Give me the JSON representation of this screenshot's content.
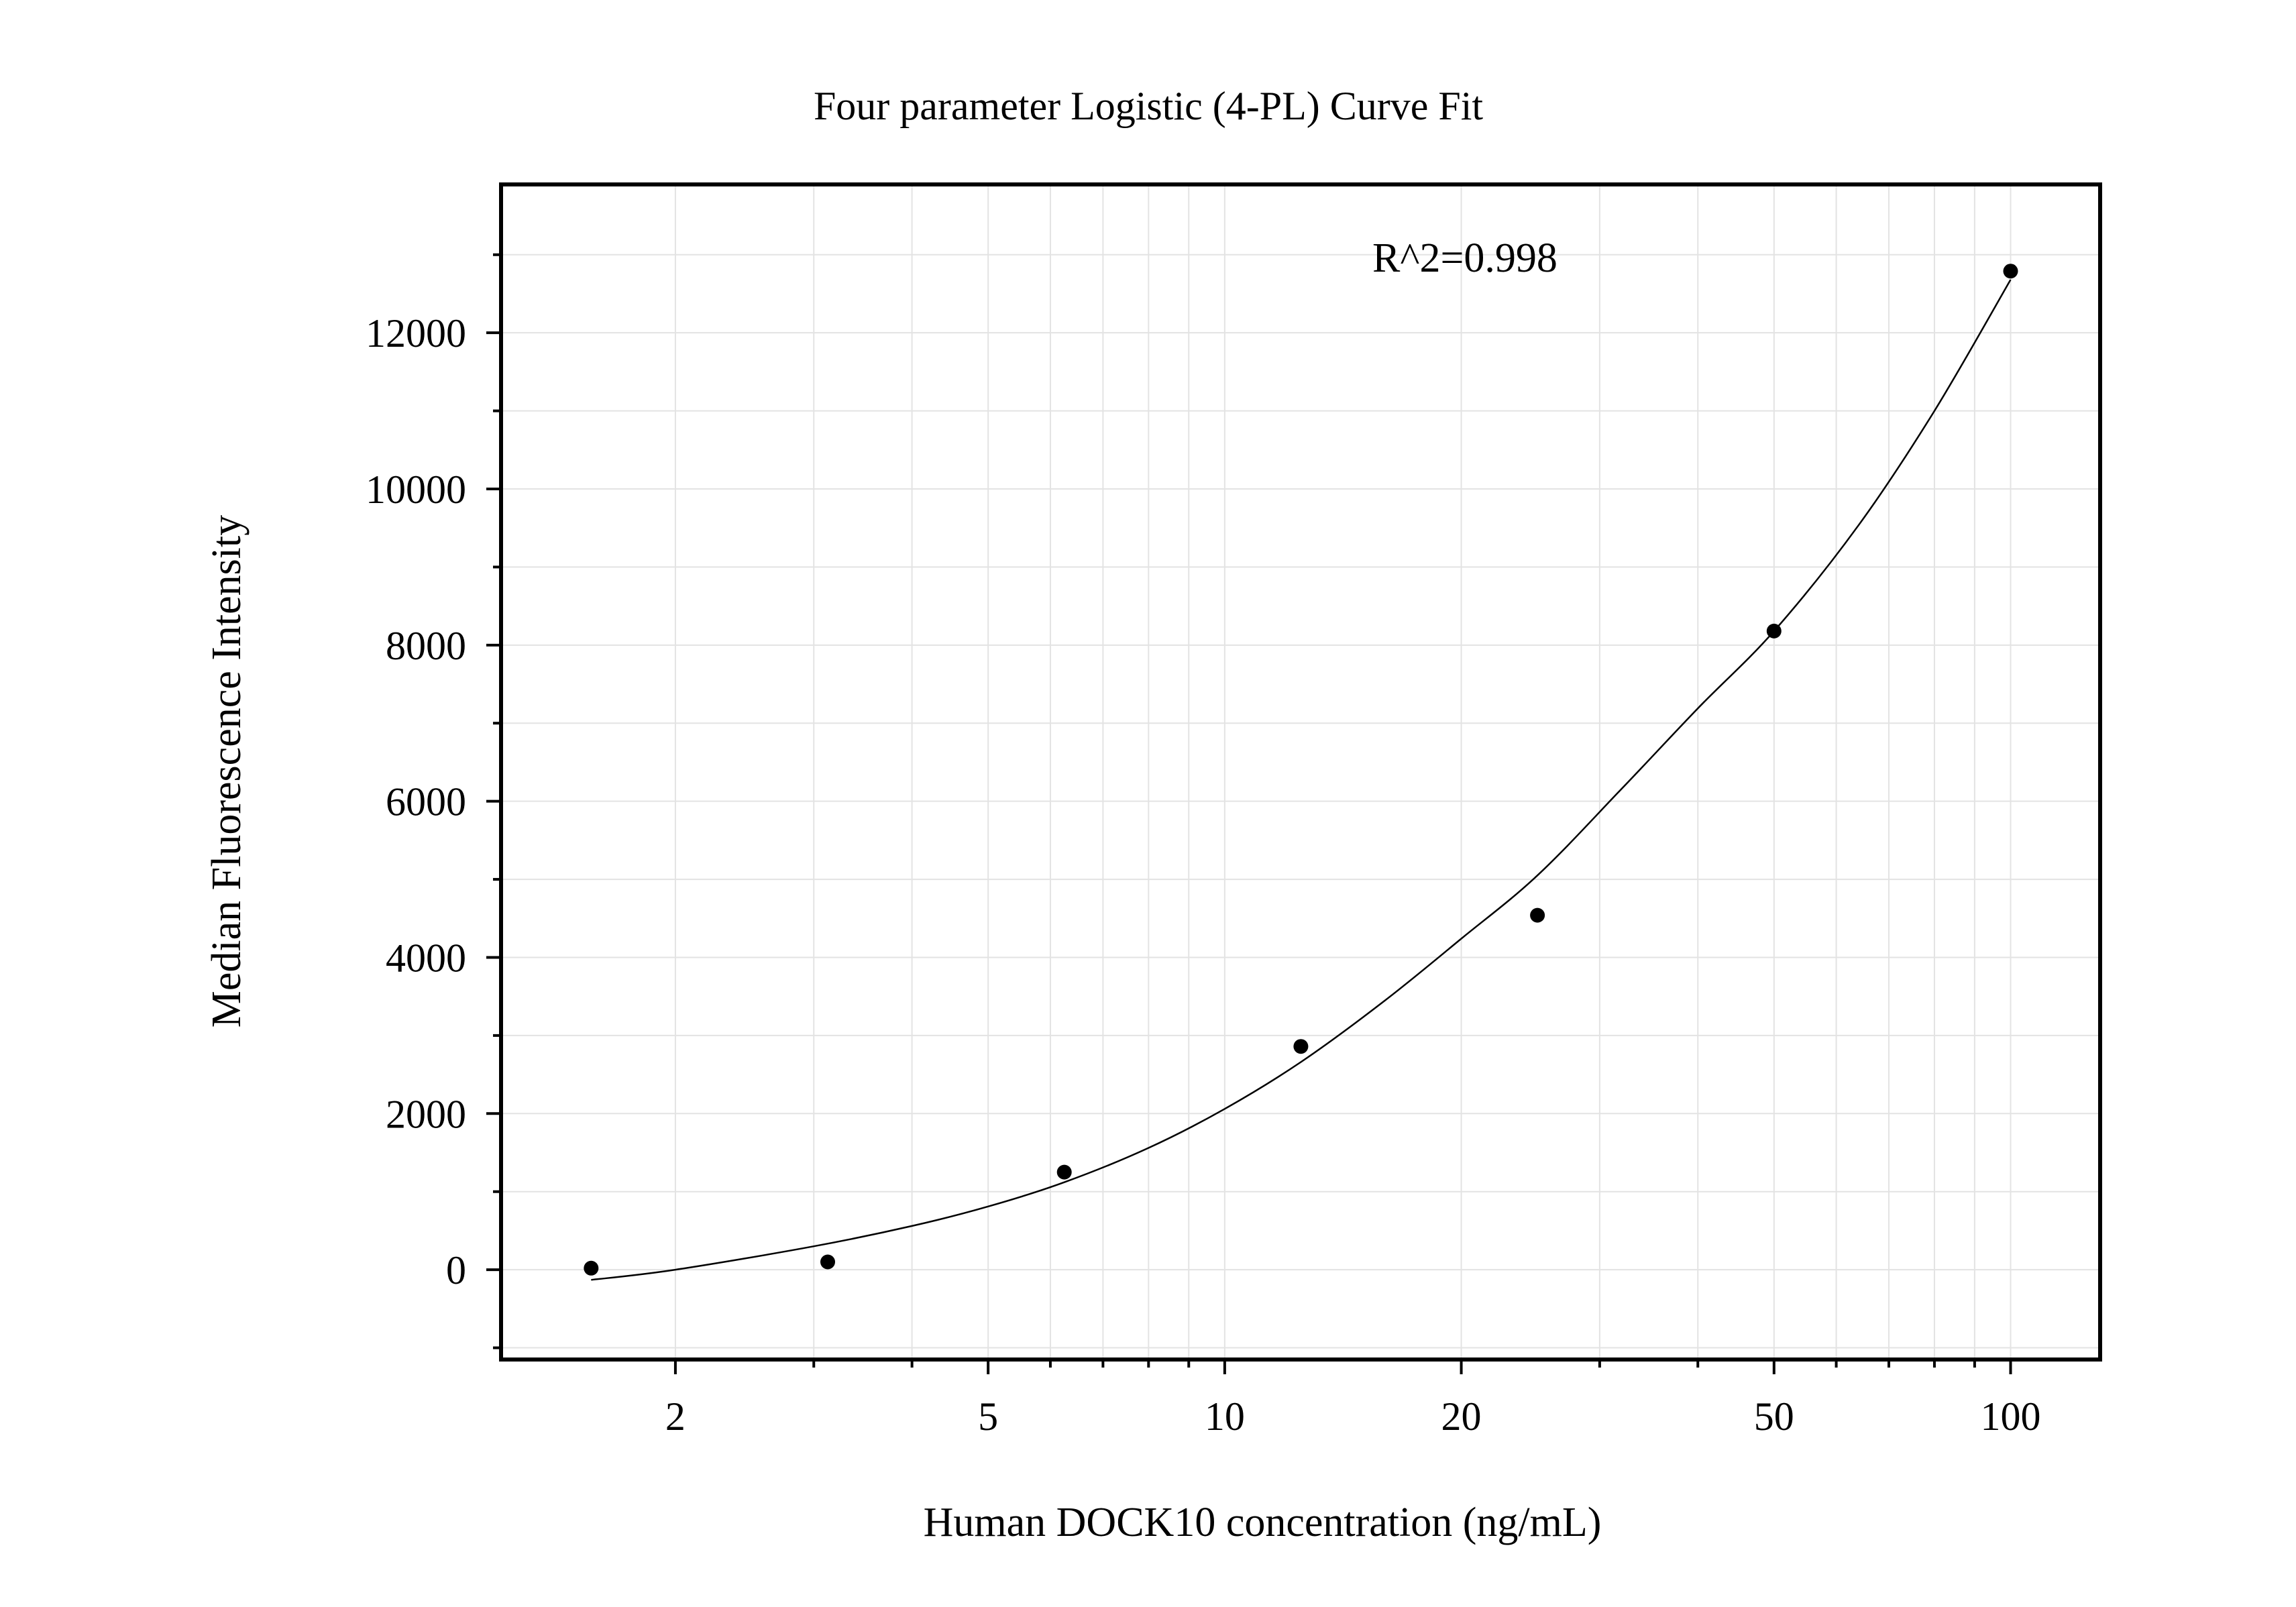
{
  "chart_data": {
    "type": "scatter",
    "title": "Four parameter Logistic (4-PL) Curve Fit",
    "xlabel": "Human DOCK10 concentration (ng/mL)",
    "ylabel": "Median Fluorescence Intensity",
    "x_scale": "log",
    "xlim": [
      1.2,
      130
    ],
    "ylim": [
      -1150,
      13900
    ],
    "x_ticks": [
      2,
      5,
      10,
      20,
      50,
      100
    ],
    "x_tick_labels": [
      "2",
      "5",
      "10",
      "20",
      "50",
      "100"
    ],
    "y_ticks": [
      0,
      2000,
      4000,
      6000,
      8000,
      10000,
      12000
    ],
    "y_tick_labels": [
      "0",
      "2000",
      "4000",
      "6000",
      "8000",
      "10000",
      "12000"
    ],
    "grid": true,
    "annotation": "R^2=0.998",
    "series": [
      {
        "kind": "points",
        "x": [
          1.5625,
          3.125,
          6.25,
          12.5,
          25,
          50,
          100
        ],
        "y": [
          20,
          100,
          1250,
          2860,
          4540,
          8180,
          12790
        ]
      },
      {
        "kind": "fit_curve",
        "x": [
          1.5625,
          2,
          3,
          4,
          5,
          6.25,
          8,
          10,
          12.5,
          16,
          20,
          25,
          32,
          40,
          50,
          64,
          80,
          100
        ],
        "y": [
          -130,
          0,
          300,
          560,
          810,
          1120,
          1560,
          2060,
          2660,
          3450,
          4240,
          5050,
          6160,
          7190,
          8180,
          9530,
          11000,
          12680
        ]
      }
    ],
    "colors": {
      "axis": "#000000",
      "grid": "#e3e3e3",
      "marker": "#000000",
      "curve": "#000000"
    }
  }
}
